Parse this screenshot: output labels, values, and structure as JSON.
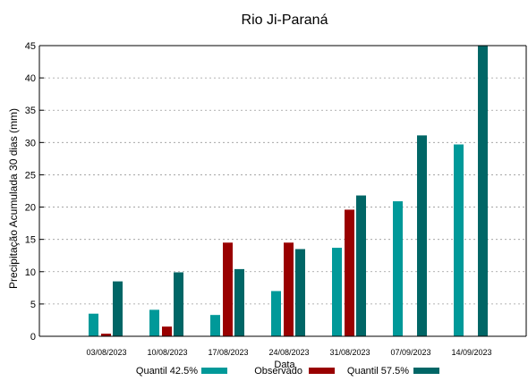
{
  "chart_data": {
    "type": "bar",
    "title": "Rio Ji-Paraná",
    "xlabel": "Data",
    "ylabel": "Precipitação Acumulada 30 dias (mm)",
    "ylim": [
      0,
      45
    ],
    "yticks": [
      0,
      5,
      10,
      15,
      20,
      25,
      30,
      35,
      40,
      45
    ],
    "grid": true,
    "legend_position": "bottom",
    "categories": [
      "03/08/2023",
      "10/08/2023",
      "17/08/2023",
      "24/08/2023",
      "31/08/2023",
      "07/09/2023",
      "14/09/2023"
    ],
    "series": [
      {
        "name": "Quantil 42.5%",
        "color": "#009999",
        "values": [
          3.5,
          4.1,
          3.3,
          7.0,
          13.7,
          20.9,
          29.7
        ]
      },
      {
        "name": "Observado",
        "color": "#990000",
        "values": [
          0.4,
          1.5,
          14.5,
          14.5,
          19.6,
          null,
          null
        ]
      },
      {
        "name": "Quantil 57.5%",
        "color": "#006666",
        "values": [
          8.5,
          9.9,
          10.4,
          13.5,
          21.8,
          31.1,
          45.0
        ]
      }
    ]
  }
}
